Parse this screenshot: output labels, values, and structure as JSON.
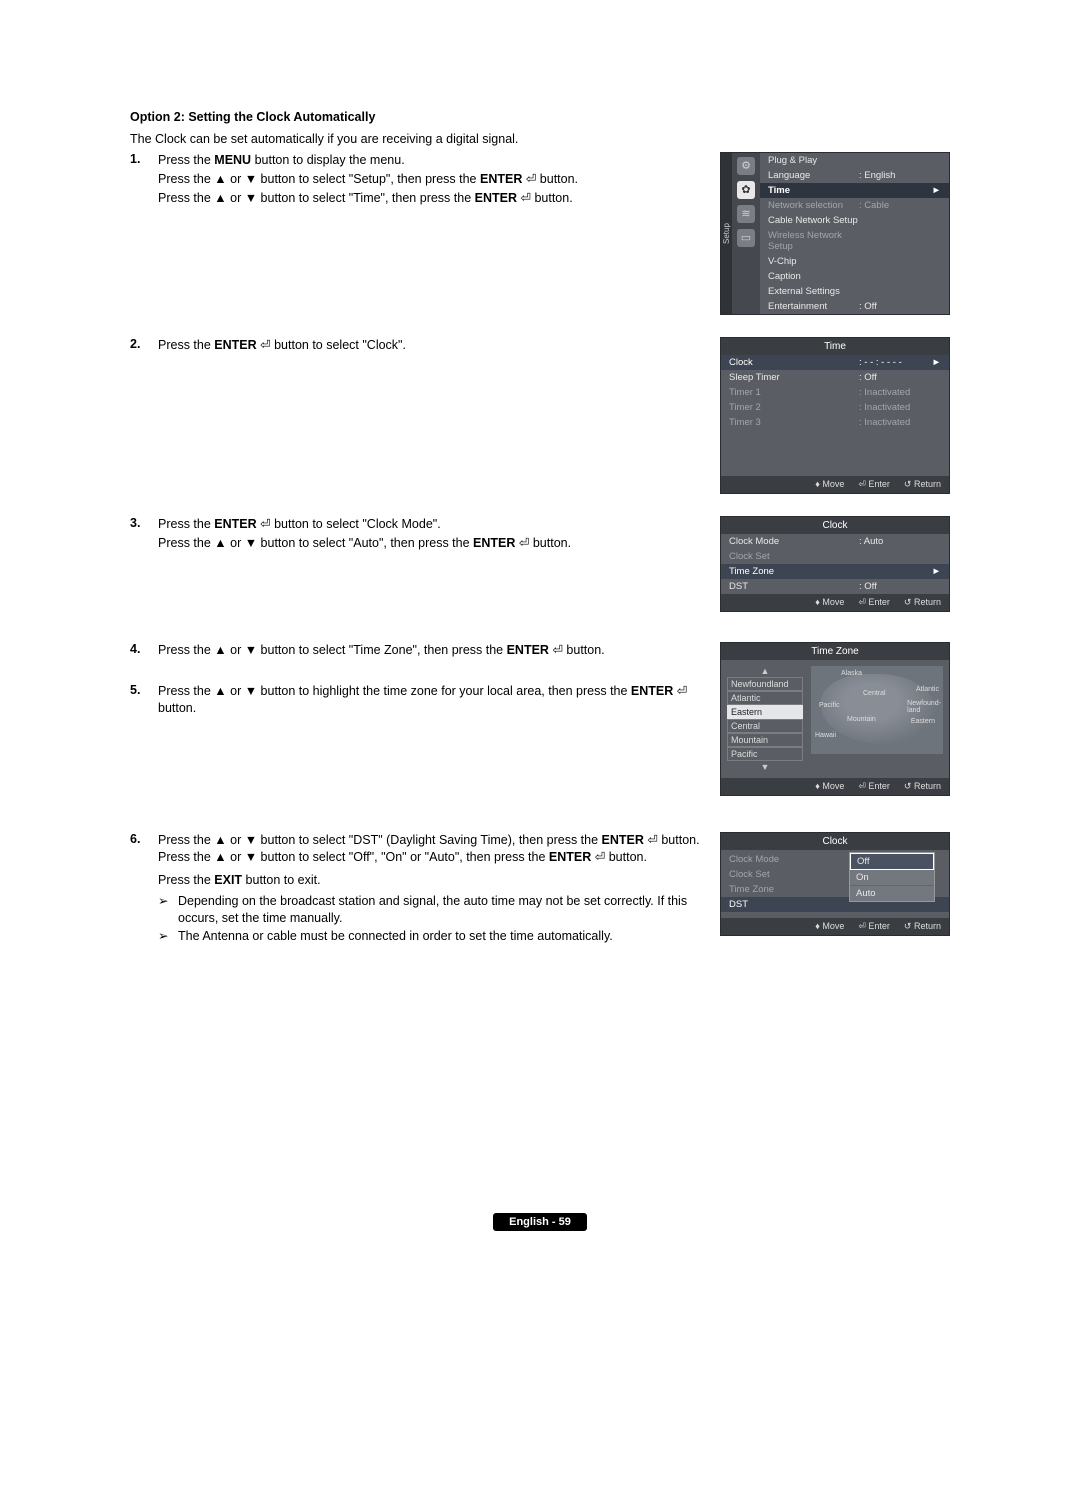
{
  "heading": "Option 2: Setting the Clock Automatically",
  "intro": "The Clock can be set automatically if you are receiving a digital signal.",
  "step1": {
    "num": "1.",
    "line1a": "Press the ",
    "line1b": "MENU",
    "line1c": " button to display the menu.",
    "line2a": "Press the ▲ or ▼ button to select \"Setup\", then press the ",
    "line2b": "ENTER",
    "line2c": " button.",
    "line3a": "Press the ▲ or ▼ button to select \"Time\", then press the ",
    "line3b": "ENTER",
    "line3c": " button."
  },
  "step2": {
    "num": "2.",
    "a": "Press the ",
    "b": "ENTER",
    "c": " button to select \"Clock\"."
  },
  "step3": {
    "num": "3.",
    "line1a": "Press the ",
    "line1b": "ENTER",
    "line1c": " button to select \"Clock Mode\".",
    "line2a": "Press the ▲ or ▼ button to select \"Auto\", then press the ",
    "line2b": "ENTER",
    "line2c": " button."
  },
  "step4": {
    "num": "4.",
    "a": "Press the ▲ or ▼ button to select \"Time Zone\", then press the ",
    "b": "ENTER",
    "c": " button."
  },
  "step5": {
    "num": "5.",
    "a": "Press the ▲ or ▼ button to highlight the time zone for your local area, then press the ",
    "b": "ENTER",
    "c": " button."
  },
  "step6": {
    "num": "6.",
    "line1a": "Press the ▲ or ▼ button to select \"DST\" (Daylight Saving Time), then press the ",
    "line1b": "ENTER",
    "line1c": " button. Press the ▲ or ▼ button to select \"Off\", \"On\" or \"Auto\", then press the ",
    "line1d": "ENTER",
    "line1e": " button.",
    "line2a": "Press the ",
    "line2b": "EXIT",
    "line2c": " button to exit.",
    "note1": "Depending on the broadcast station and signal, the auto time may not be set correctly. If this occurs, set the time manually.",
    "note2": "The Antenna or cable must be connected in order to set the time automatically.",
    "marker": "➢"
  },
  "footer_hints": {
    "move": "Move",
    "enter": "Enter",
    "return": "Return",
    "move_icon": "♦",
    "enter_icon": "⏎",
    "return_icon": "↺"
  },
  "setup_menu": {
    "tab": "Setup",
    "items": [
      {
        "label": "Plug & Play",
        "val": "",
        "dim": false
      },
      {
        "label": "Language",
        "val": ": English",
        "dim": false
      },
      {
        "label": "Time",
        "val": "",
        "dim": false,
        "hl": true,
        "arrow": "►"
      },
      {
        "label": "Network selection",
        "val": ": Cable",
        "dim": true
      },
      {
        "label": "Cable Network Setup",
        "val": "",
        "dim": false
      },
      {
        "label": "Wireless Network Setup",
        "val": "",
        "dim": true
      },
      {
        "label": "V-Chip",
        "val": "",
        "dim": false
      },
      {
        "label": "Caption",
        "val": "",
        "dim": false
      },
      {
        "label": "External Settings",
        "val": "",
        "dim": false
      },
      {
        "label": "Entertainment",
        "val": ": Off",
        "dim": false
      }
    ]
  },
  "time_menu": {
    "title": "Time",
    "items": [
      {
        "label": "Clock",
        "val": ": - - : - -  - -",
        "sel": true,
        "arrow": "►"
      },
      {
        "label": "Sleep Timer",
        "val": ": Off"
      },
      {
        "label": "Timer 1",
        "val": ": Inactivated",
        "dim": true
      },
      {
        "label": "Timer 2",
        "val": ": Inactivated",
        "dim": true
      },
      {
        "label": "Timer 3",
        "val": ": Inactivated",
        "dim": true
      }
    ]
  },
  "clock_menu": {
    "title": "Clock",
    "items": [
      {
        "label": "Clock Mode",
        "val": ": Auto"
      },
      {
        "label": "Clock Set",
        "val": "",
        "dim": true
      },
      {
        "label": "Time Zone",
        "val": "",
        "sel": true,
        "arrow": "►"
      },
      {
        "label": "DST",
        "val": ": Off"
      }
    ]
  },
  "tz_menu": {
    "title": "Time Zone",
    "up": "▲",
    "down": "▼",
    "items": [
      {
        "label": "Newfoundland"
      },
      {
        "label": "Atlantic"
      },
      {
        "label": "Eastern",
        "sel": true
      },
      {
        "label": "Central"
      },
      {
        "label": "Mountain"
      },
      {
        "label": "Pacific"
      }
    ],
    "map_labels": {
      "alaska": "Alaska",
      "pacific": "Pacific",
      "central": "Central",
      "atlantic": "Atlantic",
      "mountain": "Mountain",
      "eastern": "Eastern",
      "hawaii": "Hawaii",
      "newfoundland": "Newfound-\nland"
    }
  },
  "dst_menu": {
    "title": "Clock",
    "items": [
      {
        "label": "Clock Mode",
        "dim": true
      },
      {
        "label": "Clock Set",
        "dim": true
      },
      {
        "label": "Time Zone",
        "dim": true
      },
      {
        "label": "DST",
        "sel": true
      }
    ],
    "options": [
      {
        "label": "Off",
        "sel": true
      },
      {
        "label": "On"
      },
      {
        "label": "Auto"
      }
    ]
  },
  "icon_enter": "⏎",
  "page_footer": "English - 59"
}
